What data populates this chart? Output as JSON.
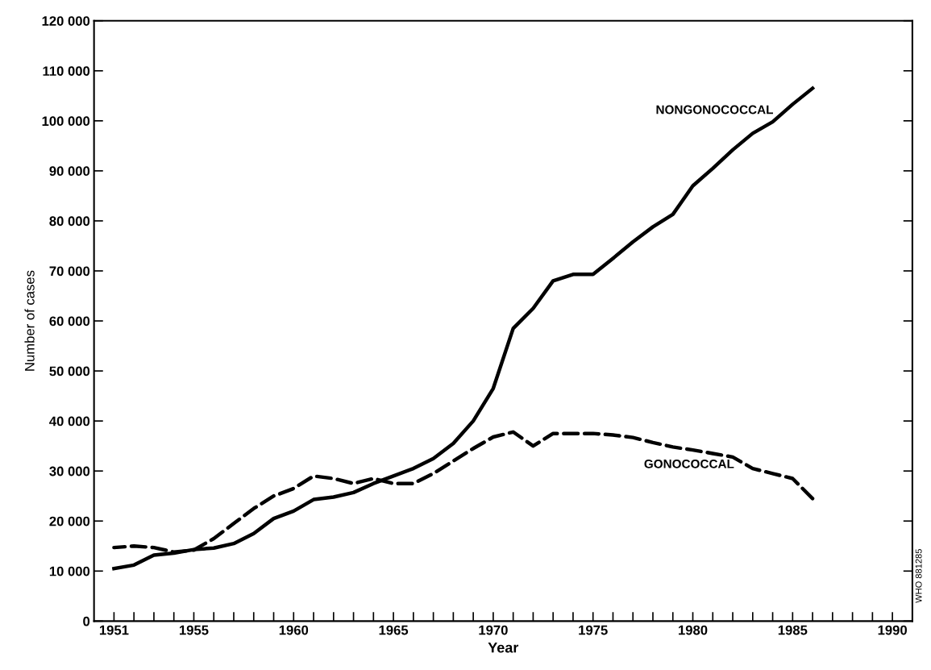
{
  "chart_data": {
    "type": "line",
    "xlabel": "Year",
    "ylabel": "Number of cases",
    "x": [
      1951,
      1952,
      1953,
      1954,
      1955,
      1956,
      1957,
      1958,
      1959,
      1960,
      1961,
      1962,
      1963,
      1964,
      1965,
      1966,
      1967,
      1968,
      1969,
      1970,
      1971,
      1972,
      1973,
      1974,
      1975,
      1976,
      1977,
      1978,
      1979,
      1980,
      1981,
      1982,
      1983,
      1984,
      1985,
      1986
    ],
    "series": [
      {
        "name": "NONGONOCOCCAL",
        "color": "#000000",
        "line_style": "solid",
        "values": [
          10500,
          11200,
          13200,
          13600,
          14300,
          14600,
          15500,
          17500,
          20500,
          22000,
          24300,
          24800,
          25700,
          27500,
          29000,
          30500,
          32500,
          35500,
          40000,
          46500,
          58500,
          62500,
          68000,
          69300,
          69300,
          72500,
          75800,
          78800,
          81300,
          87000,
          90500,
          94200,
          97500,
          99800,
          103300,
          106500
        ]
      },
      {
        "name": "GONOCOCCAL",
        "color": "#000000",
        "line_style": "dashed",
        "values": [
          14700,
          15000,
          14700,
          13800,
          14200,
          16500,
          19500,
          22500,
          25000,
          26500,
          29000,
          28500,
          27500,
          28500,
          27500,
          27500,
          29500,
          32000,
          34500,
          36800,
          37800,
          35000,
          37500,
          37500,
          37500,
          37200,
          36700,
          35700,
          34800,
          34200,
          33500,
          32800,
          30500,
          29500,
          28500,
          24500
        ]
      }
    ],
    "xlim": [
      1950,
      1991
    ],
    "xticks": [
      {
        "value": 1951,
        "label": "1951"
      },
      {
        "value": 1952,
        "label": null
      },
      {
        "value": 1953,
        "label": null
      },
      {
        "value": 1954,
        "label": null
      },
      1955,
      {
        "value": 1956,
        "label": null
      },
      {
        "value": 1957,
        "label": null
      },
      {
        "value": 1958,
        "label": null
      },
      {
        "value": 1959,
        "label": null
      },
      1960,
      {
        "value": 1961,
        "label": null
      },
      {
        "value": 1962,
        "label": null
      },
      {
        "value": 1963,
        "label": null
      },
      {
        "value": 1964,
        "label": null
      },
      1965,
      {
        "value": 1966,
        "label": null
      },
      {
        "value": 1967,
        "label": null
      },
      {
        "value": 1968,
        "label": null
      },
      {
        "value": 1969,
        "label": null
      },
      1970,
      {
        "value": 1971,
        "label": null
      },
      {
        "value": 1972,
        "label": null
      },
      {
        "value": 1973,
        "label": null
      },
      {
        "value": 1974,
        "label": null
      },
      1975,
      {
        "value": 1976,
        "label": null
      },
      {
        "value": 1977,
        "label": null
      },
      {
        "value": 1978,
        "label": null
      },
      {
        "value": 1979,
        "label": null
      },
      1980,
      {
        "value": 1981,
        "label": null
      },
      {
        "value": 1982,
        "label": null
      },
      {
        "value": 1983,
        "label": null
      },
      {
        "value": 1984,
        "label": null
      },
      1985,
      {
        "value": 1986,
        "label": null
      },
      {
        "value": 1987,
        "label": null
      },
      {
        "value": 1988,
        "label": null
      },
      {
        "value": 1989,
        "label": null
      },
      1990
    ],
    "ylim": [
      0,
      120000
    ],
    "yticks": [
      {
        "value": 0,
        "label": "0"
      },
      {
        "value": 10000,
        "label": "10 000"
      },
      {
        "value": 20000,
        "label": "20 000"
      },
      {
        "value": 30000,
        "label": "30 000"
      },
      {
        "value": 40000,
        "label": "40 000"
      },
      {
        "value": 50000,
        "label": "50 000"
      },
      {
        "value": 60000,
        "label": "60 000"
      },
      {
        "value": 70000,
        "label": "70 000"
      },
      {
        "value": 80000,
        "label": "80 000"
      },
      {
        "value": 90000,
        "label": "90 000"
      },
      {
        "value": 100000,
        "label": "100 000"
      },
      {
        "value": 110000,
        "label": "110 000"
      },
      {
        "value": 120000,
        "label": "120 000"
      }
    ],
    "grid": false,
    "legend": false,
    "marker": "none",
    "annotations": [
      "WHO 881285"
    ]
  }
}
